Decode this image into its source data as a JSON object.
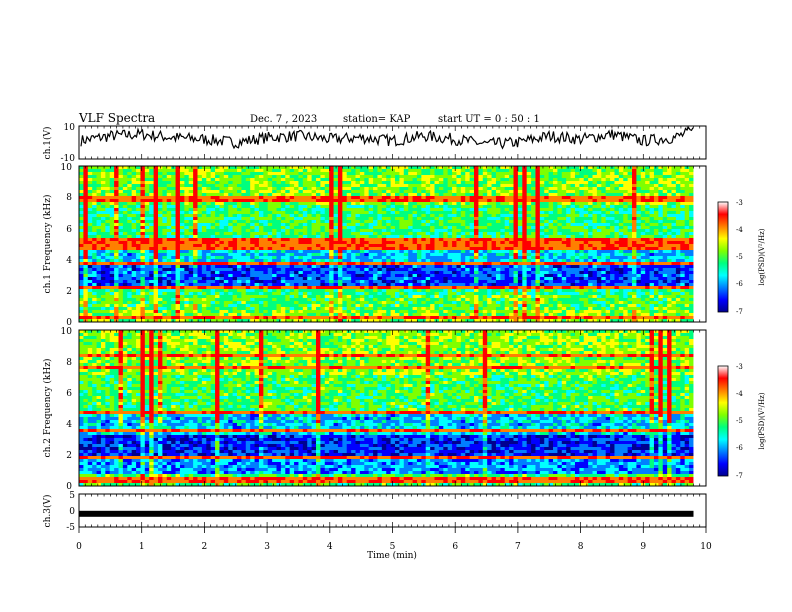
{
  "header": {
    "title": "VLF Spectra",
    "date": "Dec. 7 , 2023",
    "station": "station= KAP",
    "start": "start  UT =  0 : 50 : 1"
  },
  "colors": {
    "waveform": "#000000",
    "colormap": [
      "#00008f",
      "#0000ff",
      "#007fff",
      "#00ffff",
      "#00ff7f",
      "#7fff00",
      "#ffff00",
      "#ff7f00",
      "#ff0000",
      "#ffffff"
    ]
  },
  "chart_data": [
    {
      "type": "line",
      "id": "ch1-waveform",
      "ylabel": "ch.1(V)",
      "ylim": [
        -10,
        10
      ],
      "yticklabels": [
        "10",
        "-10"
      ],
      "x": [
        0.0,
        0.5,
        1.0,
        1.5,
        2.0,
        2.5,
        3.0,
        3.5,
        4.0,
        4.5,
        5.0,
        5.5,
        6.0,
        6.5,
        7.0,
        7.5,
        8.0,
        8.5,
        9.0,
        9.5,
        9.8
      ],
      "y": [
        1,
        4,
        5,
        3,
        2,
        0,
        3,
        4,
        2,
        3,
        1,
        4,
        2,
        -1,
        0,
        4,
        2,
        5,
        1,
        3,
        7
      ]
    },
    {
      "type": "heatmap",
      "id": "ch1-spectrogram",
      "ylabel": "ch.1 Frequency (kHz)",
      "ylim": [
        0,
        10
      ],
      "yticklabels": [
        "0",
        "2",
        "4",
        "6",
        "8",
        "10"
      ],
      "colorbar": {
        "label": "log(PSD)(V²/Hz)",
        "range": [
          -7,
          -3
        ],
        "ticklabels": [
          "-3",
          "-4",
          "-5",
          "-6",
          "-7"
        ]
      },
      "bands_khz": [
        {
          "f0": 0.0,
          "f1": 0.8,
          "level": 0.62
        },
        {
          "f0": 0.8,
          "f1": 1.8,
          "level": 0.56
        },
        {
          "f0": 1.8,
          "f1": 2.3,
          "level": 0.48
        },
        {
          "f0": 2.3,
          "f1": 3.6,
          "level": 0.22
        },
        {
          "f0": 3.6,
          "f1": 5.0,
          "level": 0.36
        },
        {
          "f0": 5.0,
          "f1": 7.5,
          "level": 0.52
        },
        {
          "f0": 7.5,
          "f1": 10.0,
          "level": 0.6
        }
      ],
      "lines_khz": [
        0.3,
        2.2,
        3.8,
        4.8,
        5.2,
        7.9
      ]
    },
    {
      "type": "heatmap",
      "id": "ch2-spectrogram",
      "ylabel": "ch.2 Frequency (kHz)",
      "ylim": [
        0,
        10
      ],
      "yticklabels": [
        "0",
        "2",
        "4",
        "6",
        "8",
        "10"
      ],
      "colorbar": {
        "label": "log(PSD)(V²/Hz)",
        "range": [
          -7,
          -3
        ],
        "ticklabels": [
          "-3",
          "-4",
          "-5",
          "-6",
          "-7"
        ]
      },
      "bands_khz": [
        {
          "f0": 0.0,
          "f1": 0.8,
          "level": 0.55
        },
        {
          "f0": 0.8,
          "f1": 1.8,
          "level": 0.3
        },
        {
          "f0": 1.8,
          "f1": 3.3,
          "level": 0.18
        },
        {
          "f0": 3.3,
          "f1": 4.6,
          "level": 0.35
        },
        {
          "f0": 4.6,
          "f1": 7.2,
          "level": 0.54
        },
        {
          "f0": 7.2,
          "f1": 10.0,
          "level": 0.62
        }
      ],
      "lines_khz": [
        0.4,
        1.9,
        3.6,
        4.7,
        7.6,
        8.4
      ]
    },
    {
      "type": "line",
      "id": "ch3-waveform",
      "ylabel": "ch.3(V)",
      "ylim": [
        -5,
        5
      ],
      "yticklabels": [
        "5",
        "0",
        "-5"
      ],
      "x": [
        0.0,
        9.8
      ],
      "y": [
        -1,
        -1
      ]
    }
  ],
  "xaxis": {
    "xlabel": "Time  (min)",
    "xlim": [
      0,
      10
    ],
    "ticklabels": [
      "0",
      "1",
      "2",
      "3",
      "4",
      "5",
      "6",
      "7",
      "8",
      "9",
      "10"
    ],
    "data_end": 9.8
  }
}
